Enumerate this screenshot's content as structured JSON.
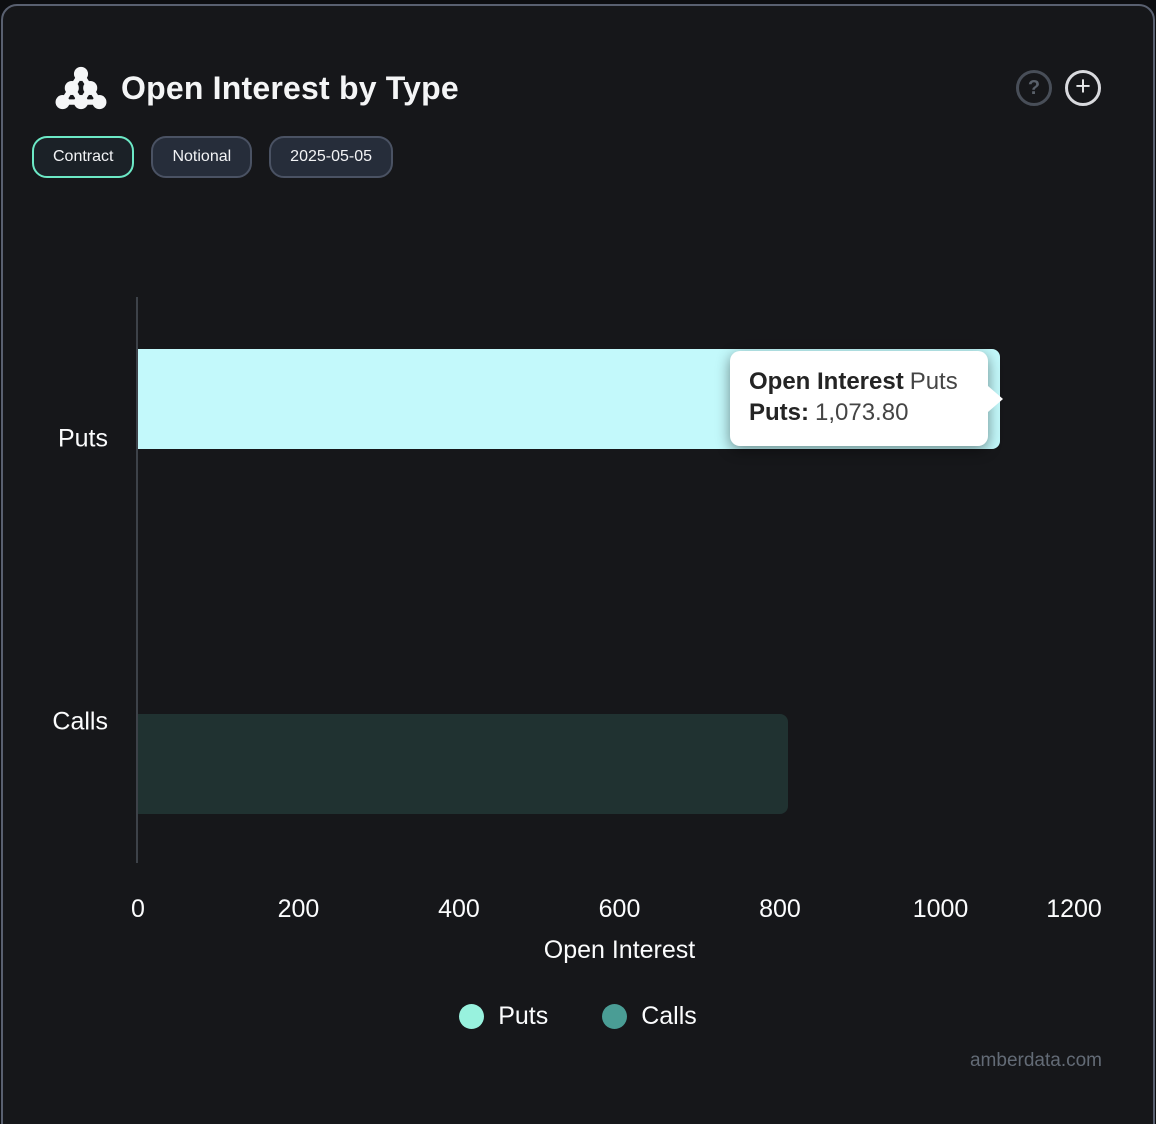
{
  "card": {
    "title": "Open Interest by Type"
  },
  "toolbar": {
    "buttons": [
      {
        "label": "Contract",
        "active": true
      },
      {
        "label": "Notional",
        "active": false
      },
      {
        "label": "2025-05-05",
        "active": false
      }
    ]
  },
  "chart_data": {
    "type": "bar",
    "orientation": "horizontal",
    "title": "Open Interest by Type",
    "categories": [
      "Puts",
      "Calls"
    ],
    "series": [
      {
        "name": "Puts",
        "color": "#c3f9fb",
        "values": [
          1073.8,
          null
        ]
      },
      {
        "name": "Calls",
        "color": "#203231",
        "values": [
          null,
          810
        ]
      }
    ],
    "xlabel": "Open Interest",
    "ylabel": "",
    "xlim": [
      0,
      1200
    ],
    "xticks": [
      0,
      200,
      400,
      600,
      800,
      1000,
      1200
    ],
    "grid": false,
    "legend_position": "bottom",
    "hovered_point": {
      "category": "Puts",
      "series": "Puts",
      "value": 1073.8
    }
  },
  "legend": [
    {
      "label": "Puts",
      "color": "#98f2de"
    },
    {
      "label": "Calls",
      "color": "#4a9d95"
    }
  ],
  "tooltip": {
    "title_bold": "Open Interest",
    "title_rest": "Puts",
    "row_label": "Puts:",
    "row_value": "1,073.80"
  },
  "watermark": "amberdata.com",
  "colors": {
    "accent": "#6ce9c6",
    "tooltip_bg": "#ffffff",
    "card_bg": "#16171a",
    "card_border": "#596070",
    "axis_line": "#3d4249"
  }
}
